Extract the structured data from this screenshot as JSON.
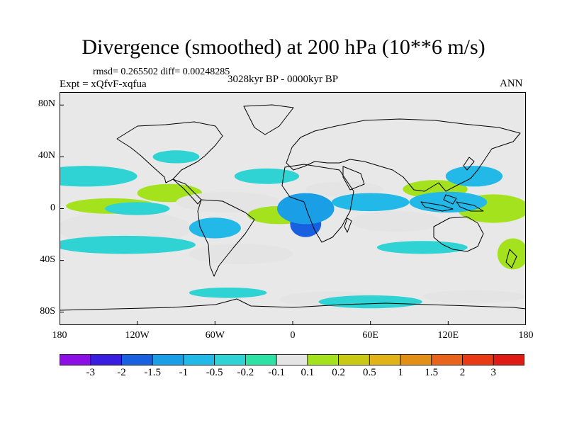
{
  "title": "Divergence (smoothed) at 200 hPa (10**6 m/s)",
  "stats": "rmsd= 0.265502 diff= 0.00248285",
  "experiment": "Expt = xQfvF-xqfua",
  "period": "3028kyr BP - 0000kyr BP",
  "season": "ANN",
  "map": {
    "lon_range": [
      -180,
      180
    ],
    "lat_range": [
      -90,
      90
    ],
    "lat_labels": [
      {
        "lat": 80,
        "text": "80N"
      },
      {
        "lat": 40,
        "text": "40N"
      },
      {
        "lat": 0,
        "text": "0"
      },
      {
        "lat": -40,
        "text": "40S"
      },
      {
        "lat": -80,
        "text": "80S"
      }
    ],
    "lon_labels": [
      {
        "lon": -180,
        "text": "180"
      },
      {
        "lon": -120,
        "text": "120W"
      },
      {
        "lon": -60,
        "text": "60W"
      },
      {
        "lon": 0,
        "text": "0"
      },
      {
        "lon": 60,
        "text": "60E"
      },
      {
        "lon": 120,
        "text": "120E"
      },
      {
        "lon": 180,
        "text": "180"
      }
    ],
    "background_color": "#e8e8e8",
    "fields": [
      {
        "lon": 160,
        "lat": -2,
        "rlon": 20,
        "rlat": 6,
        "level": 10
      },
      {
        "lon": 155,
        "lat": 0,
        "rlon": 28,
        "rlat": 11,
        "level": 8
      },
      {
        "lon": -150,
        "lat": -12,
        "rlon": 22,
        "rlat": 7,
        "level": 9
      },
      {
        "lon": -140,
        "lat": -14,
        "rlon": 40,
        "rlat": 10,
        "level": 8
      },
      {
        "lon": -130,
        "lat": -15,
        "rlon": 52,
        "rlat": 13,
        "level": 7
      },
      {
        "lon": -140,
        "lat": 2,
        "rlon": 35,
        "rlat": 6,
        "level": 8
      },
      {
        "lon": -95,
        "lat": 12,
        "rlon": 25,
        "rlat": 7,
        "level": 8
      },
      {
        "lon": -50,
        "lat": 5,
        "rlon": 40,
        "rlat": 8,
        "level": 7
      },
      {
        "lon": -10,
        "lat": -5,
        "rlon": 25,
        "rlat": 7,
        "level": 8
      },
      {
        "lon": 40,
        "lat": 15,
        "rlon": 30,
        "rlat": 6,
        "level": 7
      },
      {
        "lon": 80,
        "lat": -10,
        "rlon": 35,
        "rlat": 8,
        "level": 7
      },
      {
        "lon": 110,
        "lat": 15,
        "rlon": 25,
        "rlat": 7,
        "level": 8
      },
      {
        "lon": -40,
        "lat": -35,
        "rlon": 40,
        "rlat": 8,
        "level": 7
      },
      {
        "lon": 30,
        "lat": -70,
        "rlon": 40,
        "rlat": 6,
        "level": 7
      },
      {
        "lon": 140,
        "lat": -68,
        "rlon": 40,
        "rlat": 5,
        "level": 7
      },
      {
        "lon": 170,
        "lat": -35,
        "rlon": 12,
        "rlat": 12,
        "level": 8
      },
      {
        "lon": 10,
        "lat": -12,
        "rlon": 12,
        "rlat": 10,
        "level": 2
      },
      {
        "lon": 10,
        "lat": 0,
        "rlon": 22,
        "rlat": 12,
        "level": 3
      },
      {
        "lon": -60,
        "lat": -15,
        "rlon": 20,
        "rlat": 8,
        "level": 4
      },
      {
        "lon": -160,
        "lat": 25,
        "rlon": 40,
        "rlat": 8,
        "level": 5
      },
      {
        "lon": -130,
        "lat": -28,
        "rlon": 55,
        "rlat": 7,
        "level": 5
      },
      {
        "lon": 120,
        "lat": 5,
        "rlon": 30,
        "rlat": 8,
        "level": 4
      },
      {
        "lon": 60,
        "lat": 5,
        "rlon": 30,
        "rlat": 7,
        "level": 4
      },
      {
        "lon": 140,
        "lat": 25,
        "rlon": 22,
        "rlat": 8,
        "level": 4
      },
      {
        "lon": -120,
        "lat": 0,
        "rlon": 25,
        "rlat": 5,
        "level": 5
      },
      {
        "lon": 100,
        "lat": -30,
        "rlon": 35,
        "rlat": 5,
        "level": 5
      },
      {
        "lon": -90,
        "lat": 40,
        "rlon": 18,
        "rlat": 5,
        "level": 5
      },
      {
        "lon": -20,
        "lat": 25,
        "rlon": 25,
        "rlat": 6,
        "level": 5
      },
      {
        "lon": 60,
        "lat": -72,
        "rlon": 40,
        "rlat": 5,
        "level": 5
      },
      {
        "lon": -50,
        "lat": -65,
        "rlon": 30,
        "rlat": 4,
        "level": 5
      }
    ]
  },
  "colorbar": {
    "colors": [
      "#8c10e6",
      "#3a1ee0",
      "#1760e0",
      "#1a9ee6",
      "#22b9e8",
      "#2fd3d3",
      "#2ee2a5",
      "#e4e4e4",
      "#a5e21e",
      "#c9c815",
      "#e2b219",
      "#e38e16",
      "#e8641a",
      "#e83a14",
      "#e01a14"
    ],
    "labels": [
      "-3",
      "-2",
      "-1.5",
      "-1",
      "-0.5",
      "-0.2",
      "-0.1",
      "0.1",
      "0.2",
      "0.5",
      "1",
      "1.5",
      "2",
      "3"
    ]
  }
}
